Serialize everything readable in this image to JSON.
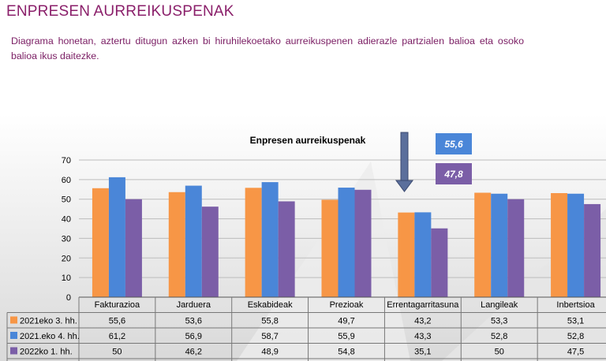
{
  "page": {
    "title": "ENPRESEN AURREIKUSPENAK",
    "description": "Diagrama honetan, aztertu ditugun azken bi hiruhilekoetako aurreikuspenen adierazle partzialen balioa eta osoko balioa ikus daitezke."
  },
  "callouts": {
    "value_blue": "55,6",
    "value_purple": "47,8",
    "blue_color": "#4a86d8",
    "purple_color": "#7b5ea7"
  },
  "chart_data": {
    "type": "bar",
    "title": "Enpresen aurreikuspenak",
    "categories": [
      "Fakturazioa",
      "Jarduera",
      "Eskabideak",
      "Prezioak",
      "Errentagarritasuna",
      "Langileak",
      "Inbertsioa"
    ],
    "ylim": [
      0,
      70
    ],
    "yticks": [
      0,
      10,
      20,
      30,
      40,
      50,
      60,
      70
    ],
    "grid": true,
    "legend": "table-below",
    "series": [
      {
        "name": "2021eko 3. hh.",
        "color": "#f79646",
        "values": [
          55.6,
          53.6,
          55.8,
          49.7,
          43.2,
          53.3,
          53.1
        ],
        "labels": [
          "55,6",
          "53,6",
          "55,8",
          "49,7",
          "43,2",
          "53,3",
          "53,1"
        ]
      },
      {
        "name": "2021.eko 4. hh.",
        "color": "#4a86d8",
        "values": [
          61.2,
          56.9,
          58.7,
          55.9,
          43.3,
          52.8,
          52.8
        ],
        "labels": [
          "61,2",
          "56,9",
          "58,7",
          "55,9",
          "43,3",
          "52,8",
          "52,8"
        ]
      },
      {
        "name": "2022ko 1. hh.",
        "color": "#7b5ea7",
        "values": [
          50,
          46.2,
          48.9,
          54.8,
          35.1,
          50,
          47.5
        ],
        "labels": [
          "50",
          "46,2",
          "48,9",
          "54,8",
          "35,1",
          "50",
          "47,5"
        ]
      }
    ]
  }
}
